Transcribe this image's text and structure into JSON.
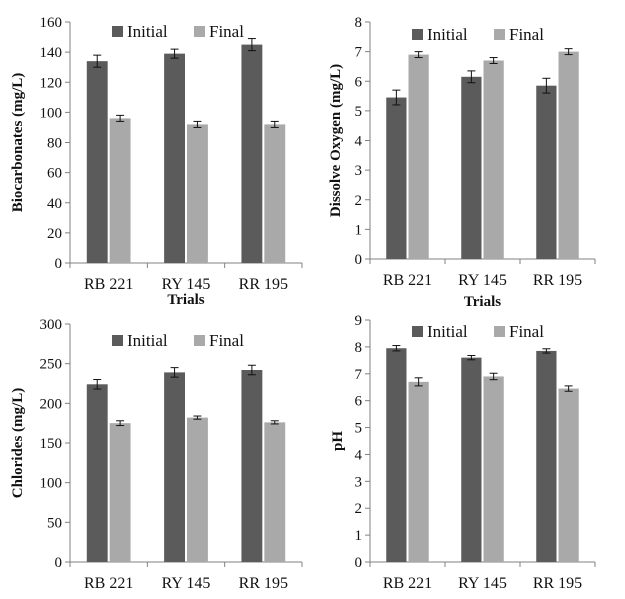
{
  "colors": {
    "initial": "#5b5b5b",
    "final": "#a9a9a9",
    "axis": "#808080",
    "error_bar": "#111111"
  },
  "chart_data": [
    {
      "type": "bar",
      "categories": [
        "RB 221",
        "RY 145",
        "RR 195"
      ],
      "series": [
        {
          "name": "Initial",
          "values": [
            134,
            139,
            145
          ],
          "errors": [
            4,
            3,
            4
          ]
        },
        {
          "name": "Final",
          "values": [
            96,
            92,
            92
          ],
          "errors": [
            2,
            2,
            2
          ]
        }
      ],
      "xlabel": "Trials",
      "ylabel": "Biocarbonates  (mg/L)",
      "ylim": [
        0,
        160
      ],
      "yticks": [
        0,
        20,
        40,
        60,
        80,
        100,
        120,
        140,
        160
      ],
      "legend": "top",
      "grid": false
    },
    {
      "type": "bar",
      "categories": [
        "RB 221",
        "RY 145",
        "RR 195"
      ],
      "series": [
        {
          "name": "Initial",
          "values": [
            5.45,
            6.15,
            5.85
          ],
          "errors": [
            0.25,
            0.2,
            0.25
          ]
        },
        {
          "name": "Final",
          "values": [
            6.9,
            6.7,
            7.0
          ],
          "errors": [
            0.1,
            0.1,
            0.1
          ]
        }
      ],
      "xlabel": "Trials",
      "ylabel": "Dissolve Oxygen (mg/L)",
      "ylim": [
        0,
        8
      ],
      "yticks": [
        0,
        1,
        2,
        3,
        4,
        5,
        6,
        7,
        8
      ],
      "legend": "top",
      "grid": false
    },
    {
      "type": "bar",
      "categories": [
        "RB 221",
        "RY 145",
        "RR 195"
      ],
      "series": [
        {
          "name": "Initial",
          "values": [
            224,
            239,
            242
          ],
          "errors": [
            6,
            6,
            6
          ]
        },
        {
          "name": "Final",
          "values": [
            175,
            182,
            176
          ],
          "errors": [
            3,
            2,
            2
          ]
        }
      ],
      "xlabel": "",
      "ylabel": "Chlorides (mg/L)",
      "ylim": [
        0,
        300
      ],
      "yticks": [
        0,
        50,
        100,
        150,
        200,
        250,
        300
      ],
      "legend": "top",
      "grid": false
    },
    {
      "type": "bar",
      "categories": [
        "RB 221",
        "RY 145",
        "RR 195"
      ],
      "series": [
        {
          "name": "Initial",
          "values": [
            7.95,
            7.6,
            7.85
          ],
          "errors": [
            0.1,
            0.08,
            0.08
          ]
        },
        {
          "name": "Final",
          "values": [
            6.7,
            6.9,
            6.45
          ],
          "errors": [
            0.15,
            0.12,
            0.1
          ]
        }
      ],
      "xlabel": "",
      "ylabel": "pH",
      "ylim": [
        0,
        9
      ],
      "yticks": [
        0,
        1,
        2,
        3,
        4,
        5,
        6,
        7,
        8,
        9
      ],
      "legend": "top",
      "grid": false
    }
  ]
}
